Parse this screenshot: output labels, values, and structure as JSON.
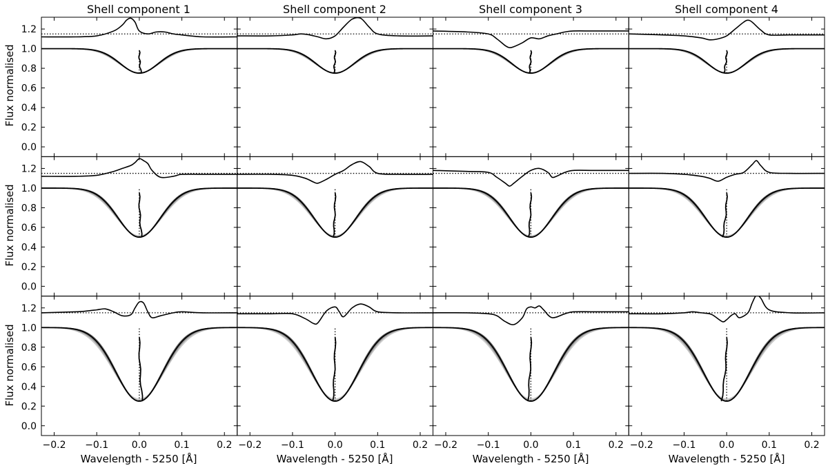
{
  "chart_data": {
    "type": "line",
    "layout": {
      "rows": 3,
      "cols": 4,
      "shared_axes": true
    },
    "column_titles": [
      "Shell component 1",
      "Shell component 2",
      "Shell component 3",
      "Shell component 4"
    ],
    "xlabel": "Wavelength - 5250 [Å]",
    "ylabel": "Flux normalised",
    "xlim": [
      -0.23,
      0.23
    ],
    "ylim": [
      -0.1,
      1.32
    ],
    "xticks": [
      -0.2,
      -0.1,
      0.0,
      0.1,
      0.2
    ],
    "xtick_labels": [
      "−0.2",
      "−0.1",
      "0.0",
      "0.1",
      "0.2"
    ],
    "yticks": [
      0.0,
      0.2,
      0.4,
      0.6,
      0.8,
      1.0,
      1.2
    ],
    "ytick_labels": [
      "0.0",
      "0.2",
      "0.4",
      "0.6",
      "0.8",
      "1.0",
      "1.2"
    ],
    "reference_level": 1.15,
    "line_center": 0.0,
    "rows": [
      {
        "line_depth": 0.75,
        "line_sigma": 0.045,
        "bisector_top": 0.98,
        "residuals": [
          {
            "x": [
              -0.23,
              -0.15,
              -0.1,
              -0.06,
              -0.04,
              -0.03,
              -0.02,
              -0.01,
              0.0,
              0.02,
              0.04,
              0.06,
              0.08,
              0.1,
              0.15,
              0.23
            ],
            "y": [
              1.12,
              1.12,
              1.13,
              1.18,
              1.24,
              1.29,
              1.31,
              1.27,
              1.18,
              1.15,
              1.17,
              1.17,
              1.15,
              1.14,
              1.12,
              1.12
            ]
          },
          {
            "x": [
              -0.23,
              -0.15,
              -0.1,
              -0.08,
              -0.06,
              -0.04,
              -0.02,
              0.0,
              0.02,
              0.04,
              0.06,
              0.08,
              0.1,
              0.15,
              0.23
            ],
            "y": [
              1.13,
              1.13,
              1.14,
              1.15,
              1.14,
              1.12,
              1.1,
              1.13,
              1.22,
              1.3,
              1.31,
              1.22,
              1.15,
              1.13,
              1.13
            ]
          },
          {
            "x": [
              -0.23,
              -0.15,
              -0.1,
              -0.08,
              -0.06,
              -0.05,
              -0.04,
              -0.02,
              0.0,
              0.02,
              0.04,
              0.06,
              0.08,
              0.1,
              0.15,
              0.23
            ],
            "y": [
              1.18,
              1.17,
              1.15,
              1.1,
              1.03,
              1.01,
              1.02,
              1.06,
              1.11,
              1.1,
              1.13,
              1.15,
              1.17,
              1.18,
              1.18,
              1.18
            ]
          },
          {
            "x": [
              -0.23,
              -0.15,
              -0.1,
              -0.06,
              -0.04,
              -0.02,
              0.0,
              0.02,
              0.04,
              0.05,
              0.06,
              0.08,
              0.1,
              0.15,
              0.23
            ],
            "y": [
              1.15,
              1.14,
              1.13,
              1.11,
              1.09,
              1.1,
              1.13,
              1.2,
              1.27,
              1.29,
              1.27,
              1.19,
              1.14,
              1.14,
              1.14
            ]
          }
        ]
      },
      {
        "line_depth": 0.5,
        "line_sigma": 0.05,
        "bisector_top": 0.95,
        "residuals": [
          {
            "x": [
              -0.23,
              -0.15,
              -0.1,
              -0.06,
              -0.04,
              -0.02,
              -0.01,
              0.0,
              0.01,
              0.02,
              0.03,
              0.05,
              0.08,
              0.1,
              0.15,
              0.23
            ],
            "y": [
              1.12,
              1.12,
              1.13,
              1.17,
              1.2,
              1.23,
              1.26,
              1.3,
              1.28,
              1.25,
              1.18,
              1.11,
              1.12,
              1.14,
              1.14,
              1.14
            ]
          },
          {
            "x": [
              -0.23,
              -0.15,
              -0.1,
              -0.07,
              -0.05,
              -0.04,
              -0.02,
              0.0,
              0.02,
              0.04,
              0.06,
              0.08,
              0.1,
              0.15,
              0.23
            ],
            "y": [
              1.14,
              1.14,
              1.13,
              1.1,
              1.06,
              1.05,
              1.09,
              1.14,
              1.18,
              1.24,
              1.27,
              1.22,
              1.15,
              1.14,
              1.14
            ]
          },
          {
            "x": [
              -0.23,
              -0.15,
              -0.1,
              -0.08,
              -0.06,
              -0.05,
              -0.04,
              -0.02,
              0.0,
              0.02,
              0.04,
              0.05,
              0.06,
              0.08,
              0.1,
              0.15,
              0.23
            ],
            "y": [
              1.18,
              1.17,
              1.16,
              1.11,
              1.05,
              1.02,
              1.05,
              1.12,
              1.18,
              1.2,
              1.16,
              1.11,
              1.12,
              1.16,
              1.18,
              1.18,
              1.18
            ]
          },
          {
            "x": [
              -0.23,
              -0.15,
              -0.1,
              -0.06,
              -0.04,
              -0.02,
              0.0,
              0.02,
              0.04,
              0.06,
              0.07,
              0.08,
              0.1,
              0.15,
              0.23
            ],
            "y": [
              1.15,
              1.15,
              1.14,
              1.12,
              1.1,
              1.07,
              1.11,
              1.14,
              1.16,
              1.24,
              1.28,
              1.23,
              1.16,
              1.15,
              1.15
            ]
          }
        ]
      },
      {
        "line_depth": 0.25,
        "line_sigma": 0.055,
        "bisector_top": 0.9,
        "residuals": [
          {
            "x": [
              -0.23,
              -0.15,
              -0.12,
              -0.1,
              -0.08,
              -0.06,
              -0.04,
              -0.02,
              -0.01,
              0.0,
              0.01,
              0.02,
              0.03,
              0.05,
              0.08,
              0.1,
              0.15,
              0.23
            ],
            "y": [
              1.15,
              1.16,
              1.17,
              1.18,
              1.19,
              1.16,
              1.12,
              1.13,
              1.2,
              1.26,
              1.25,
              1.16,
              1.1,
              1.12,
              1.15,
              1.16,
              1.15,
              1.15
            ]
          },
          {
            "x": [
              -0.23,
              -0.15,
              -0.1,
              -0.07,
              -0.05,
              -0.04,
              -0.02,
              0.0,
              0.01,
              0.02,
              0.04,
              0.06,
              0.08,
              0.1,
              0.15,
              0.23
            ],
            "y": [
              1.14,
              1.14,
              1.14,
              1.09,
              1.04,
              1.05,
              1.17,
              1.21,
              1.16,
              1.11,
              1.2,
              1.24,
              1.21,
              1.16,
              1.15,
              1.15
            ]
          },
          {
            "x": [
              -0.23,
              -0.15,
              -0.1,
              -0.08,
              -0.06,
              -0.04,
              -0.02,
              -0.01,
              0.0,
              0.01,
              0.02,
              0.03,
              0.05,
              0.08,
              0.1,
              0.15,
              0.23
            ],
            "y": [
              1.15,
              1.15,
              1.14,
              1.12,
              1.06,
              1.03,
              1.1,
              1.19,
              1.21,
              1.2,
              1.22,
              1.18,
              1.1,
              1.14,
              1.16,
              1.16,
              1.16
            ]
          },
          {
            "x": [
              -0.23,
              -0.15,
              -0.1,
              -0.08,
              -0.06,
              -0.04,
              -0.03,
              -0.01,
              0.0,
              0.01,
              0.02,
              0.03,
              0.05,
              0.06,
              0.07,
              0.08,
              0.1,
              0.15,
              0.23
            ],
            "y": [
              1.14,
              1.14,
              1.15,
              1.16,
              1.15,
              1.14,
              1.12,
              1.06,
              1.08,
              1.12,
              1.14,
              1.1,
              1.15,
              1.25,
              1.33,
              1.3,
              1.18,
              1.15,
              1.15
            ]
          }
        ]
      }
    ]
  }
}
